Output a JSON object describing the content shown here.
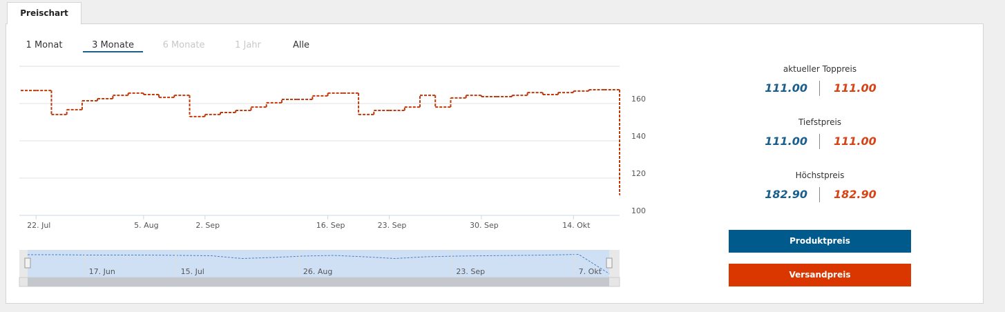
{
  "tab": "Preischart",
  "ranges": [
    "1 Monat",
    "3 Monate",
    "6 Monate",
    "1 Jahr",
    "Alle"
  ],
  "chart_data": {
    "type": "line",
    "step": true,
    "color": "#c0390b",
    "categories": [
      null,
      "22. Jul",
      null,
      null,
      null,
      null,
      null,
      null,
      "5. Aug",
      null,
      null,
      null,
      "2. Sep",
      null,
      null,
      null,
      null,
      null,
      null,
      null,
      "16. Sep",
      null,
      null,
      null,
      "23. Sep",
      null,
      null,
      null,
      null,
      null,
      "30. Sep",
      null,
      null,
      null,
      null,
      null,
      "14. Okt",
      null,
      null,
      null
    ],
    "values": [
      167,
      167,
      154.1,
      156.7,
      161.5,
      162.6,
      164.4,
      165.6,
      164.8,
      163.3,
      164.4,
      153,
      154.1,
      155.2,
      156.3,
      158.1,
      160.4,
      162.2,
      162.2,
      164.1,
      165.6,
      165.6,
      154.1,
      156.3,
      156.3,
      158.1,
      164.4,
      158.1,
      163,
      164.4,
      163.7,
      163.7,
      164.4,
      165.9,
      164.8,
      165.9,
      166.7,
      167.4,
      167.4,
      111
    ],
    "ylim": [
      100,
      180
    ],
    "yticks": [
      100,
      120,
      140,
      160
    ],
    "grid": true
  },
  "navigator": {
    "categories": [
      null,
      null,
      "17. Jun",
      null,
      null,
      "15. Jul",
      null,
      null,
      null,
      "26. Aug",
      null,
      null,
      null,
      null,
      "23. Sep",
      null,
      null,
      null,
      "7. Okt",
      null
    ],
    "values": [
      166,
      166,
      165,
      165,
      165,
      164,
      163,
      155,
      158,
      162,
      164,
      160,
      155,
      160,
      162,
      163,
      164,
      165,
      167,
      111
    ],
    "ylim": [
      100,
      180
    ]
  },
  "stats": [
    {
      "label": "aktueller Toppreis",
      "product": "111.00",
      "shipping": "111.00"
    },
    {
      "label": "Tiefstpreis",
      "product": "111.00",
      "shipping": "111.00"
    },
    {
      "label": "Höchstpreis",
      "product": "182.90",
      "shipping": "182.90"
    }
  ],
  "buttons": [
    "Produktpreis",
    "Versandpreis"
  ]
}
